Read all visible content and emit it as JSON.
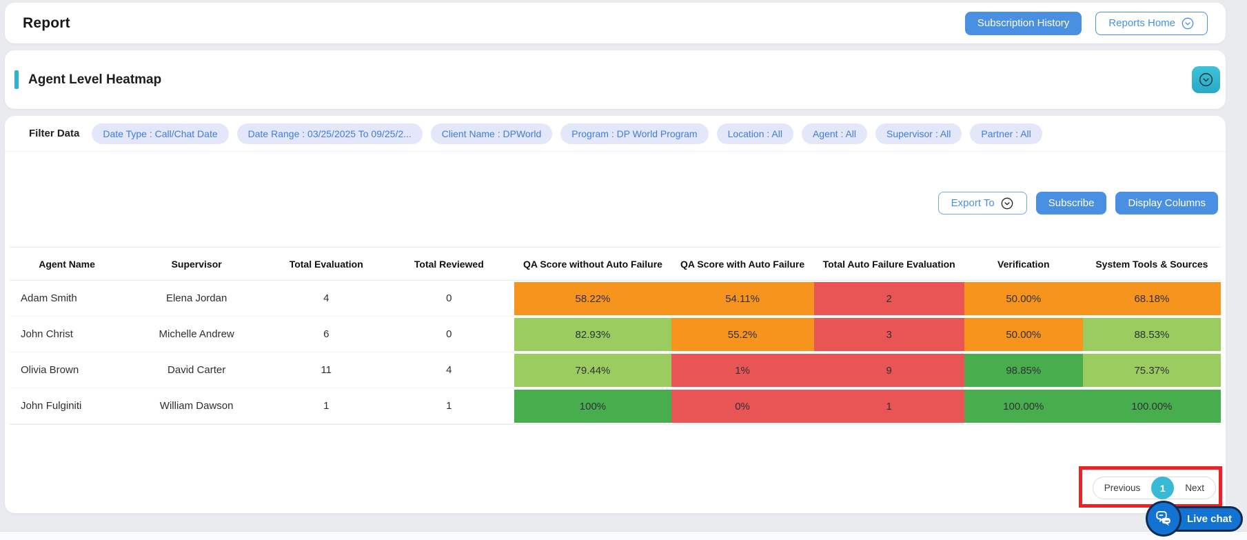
{
  "topbar": {
    "title": "Report",
    "subscription_history": "Subscription History",
    "reports_home": "Reports Home"
  },
  "section": {
    "title": "Agent Level Heatmap"
  },
  "filters": {
    "label": "Filter Data",
    "chips": [
      "Date Type : Call/Chat Date",
      "Date Range : 03/25/2025 To 09/25/2...",
      "Client Name : DPWorld",
      "Program : DP World Program",
      "Location : All",
      "Agent : All",
      "Supervisor : All",
      "Partner : All"
    ]
  },
  "actions": {
    "export_to": "Export To",
    "subscribe": "Subscribe",
    "display_columns": "Display Columns"
  },
  "table": {
    "columns": [
      "Agent Name",
      "Supervisor",
      "Total Evaluation",
      "Total Reviewed",
      "QA Score without Auto Failure",
      "QA Score with Auto Failure",
      "Total Auto Failure Evaluation",
      "Verification",
      "System Tools & Sources"
    ],
    "rows": [
      {
        "cells": [
          {
            "v": "Adam Smith"
          },
          {
            "v": "Elena Jordan"
          },
          {
            "v": "4"
          },
          {
            "v": "0"
          },
          {
            "v": "58.22%",
            "c": "orange"
          },
          {
            "v": "54.11%",
            "c": "orange"
          },
          {
            "v": "2",
            "c": "red"
          },
          {
            "v": "50.00%",
            "c": "orange"
          },
          {
            "v": "68.18%",
            "c": "orange"
          }
        ]
      },
      {
        "cells": [
          {
            "v": "John Christ"
          },
          {
            "v": "Michelle Andrew"
          },
          {
            "v": "6"
          },
          {
            "v": "0"
          },
          {
            "v": "82.93%",
            "c": "light_green"
          },
          {
            "v": "55.2%",
            "c": "orange"
          },
          {
            "v": "3",
            "c": "red"
          },
          {
            "v": "50.00%",
            "c": "orange"
          },
          {
            "v": "88.53%",
            "c": "light_green"
          }
        ]
      },
      {
        "cells": [
          {
            "v": "Olivia Brown"
          },
          {
            "v": "David Carter"
          },
          {
            "v": "11"
          },
          {
            "v": "4"
          },
          {
            "v": "79.44%",
            "c": "light_green"
          },
          {
            "v": "1%",
            "c": "red"
          },
          {
            "v": "9",
            "c": "red"
          },
          {
            "v": "98.85%",
            "c": "green"
          },
          {
            "v": "75.37%",
            "c": "light_green"
          }
        ]
      },
      {
        "cells": [
          {
            "v": "John Fulginiti"
          },
          {
            "v": "William Dawson"
          },
          {
            "v": "1"
          },
          {
            "v": "1"
          },
          {
            "v": "100%",
            "c": "green"
          },
          {
            "v": "0%",
            "c": "red"
          },
          {
            "v": "1",
            "c": "red"
          },
          {
            "v": "100.00%",
            "c": "green"
          },
          {
            "v": "100.00%",
            "c": "green"
          }
        ]
      }
    ]
  },
  "pagination": {
    "previous": "Previous",
    "page": "1",
    "next": "Next"
  },
  "live_chat": {
    "label": "Live chat"
  },
  "colors": {
    "orange": "#F7941E",
    "red": "#E95455",
    "light_green": "#9BCC5F",
    "green": "#48AE4D",
    "accent_teal": "#2EB4CF",
    "primary_blue": "#4A90E2",
    "chip_bg": "#E4E7F9",
    "chip_text": "#3D7EE0",
    "annotation_red": "#EC2226",
    "live_chat_blue": "#1273D2"
  }
}
